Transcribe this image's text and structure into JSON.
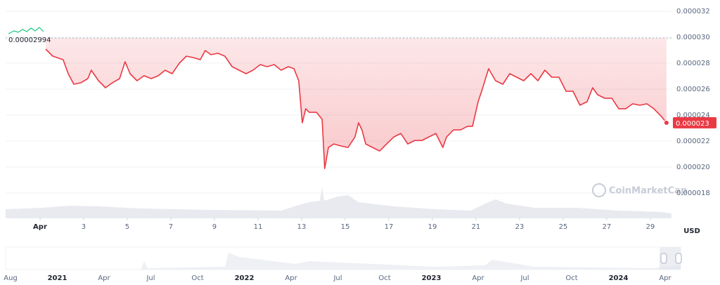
{
  "chart_data": {
    "type": "line",
    "currency": "USD",
    "watermark": "CoinMarketCap",
    "reference_value": 2.994e-05,
    "price_tag": "0.000023",
    "x": [
      1.26,
      1.58,
      2.06,
      2.29,
      2.55,
      2.87,
      3.19,
      3.35,
      3.68,
      4.0,
      4.32,
      4.65,
      4.9,
      5.13,
      5.45,
      5.77,
      6.1,
      6.42,
      6.74,
      7.06,
      7.39,
      7.71,
      8.03,
      8.35,
      8.58,
      8.84,
      9.16,
      9.48,
      9.81,
      10.13,
      10.45,
      10.77,
      11.1,
      11.42,
      11.74,
      12.06,
      12.39,
      12.65,
      12.87,
      13.03,
      13.19,
      13.35,
      13.68,
      13.94,
      14.06,
      14.23,
      14.48,
      14.81,
      15.13,
      15.45,
      15.61,
      15.77,
      15.94,
      16.26,
      16.58,
      16.9,
      17.23,
      17.55,
      17.87,
      18.19,
      18.52,
      18.84,
      19.16,
      19.48,
      19.65,
      19.97,
      20.29,
      20.61,
      20.84,
      21.1,
      21.26,
      21.58,
      21.9,
      22.23,
      22.55,
      22.87,
      23.19,
      23.52,
      23.84,
      24.16,
      24.48,
      24.81,
      25.13,
      25.45,
      25.77,
      26.1,
      26.35,
      26.58,
      26.9,
      27.23,
      27.55,
      27.87,
      28.19,
      28.52,
      28.84,
      29.16,
      29.48,
      29.74
    ],
    "series": [
      {
        "color": "#ea3943",
        "values": [
          2.908e-05,
          2.854e-05,
          2.827e-05,
          2.719e-05,
          2.638e-05,
          2.649e-05,
          2.681e-05,
          2.746e-05,
          2.665e-05,
          2.611e-05,
          2.649e-05,
          2.681e-05,
          2.811e-05,
          2.719e-05,
          2.665e-05,
          2.703e-05,
          2.681e-05,
          2.703e-05,
          2.746e-05,
          2.719e-05,
          2.8e-05,
          2.854e-05,
          2.843e-05,
          2.827e-05,
          2.897e-05,
          2.865e-05,
          2.876e-05,
          2.854e-05,
          2.773e-05,
          2.746e-05,
          2.719e-05,
          2.746e-05,
          2.789e-05,
          2.773e-05,
          2.789e-05,
          2.746e-05,
          2.773e-05,
          2.757e-05,
          2.665e-05,
          2.341e-05,
          2.449e-05,
          2.422e-05,
          2.422e-05,
          2.368e-05,
          1.989e-05,
          2.151e-05,
          2.178e-05,
          2.162e-05,
          2.151e-05,
          2.232e-05,
          2.341e-05,
          2.286e-05,
          2.178e-05,
          2.151e-05,
          2.124e-05,
          2.178e-05,
          2.232e-05,
          2.259e-05,
          2.178e-05,
          2.205e-05,
          2.205e-05,
          2.232e-05,
          2.259e-05,
          2.151e-05,
          2.232e-05,
          2.286e-05,
          2.286e-05,
          2.314e-05,
          2.314e-05,
          2.503e-05,
          2.584e-05,
          2.757e-05,
          2.665e-05,
          2.638e-05,
          2.719e-05,
          2.692e-05,
          2.665e-05,
          2.719e-05,
          2.665e-05,
          2.746e-05,
          2.692e-05,
          2.692e-05,
          2.584e-05,
          2.584e-05,
          2.476e-05,
          2.503e-05,
          2.611e-05,
          2.557e-05,
          2.53e-05,
          2.53e-05,
          2.449e-05,
          2.449e-05,
          2.487e-05,
          2.476e-05,
          2.487e-05,
          2.449e-05,
          2.395e-05,
          2.341e-05
        ]
      }
    ],
    "xlim": [
      -0.58,
      29.97
    ],
    "xticks": [
      {
        "value": 1,
        "label": "Apr"
      },
      3,
      5,
      7,
      9,
      11,
      13,
      15,
      17,
      19,
      21,
      23,
      25,
      27,
      29
    ],
    "ylim": [
      1.611e-05,
      3.243e-05
    ],
    "yticks": [
      1.8e-05,
      {
        "value": 2e-05,
        "label": "0.000020"
      },
      2.2e-05,
      2.4e-05,
      2.6e-05,
      2.8e-05,
      {
        "value": 3e-05,
        "label": "0.000030"
      },
      3.2e-05
    ],
    "grid": true,
    "navigator_labels": [
      "Aug",
      "2021",
      "Apr",
      "Jul",
      "Oct",
      "2022",
      "Apr",
      "Jul",
      "Oct",
      "2023",
      "Apr",
      "Jul",
      "Oct",
      "2024",
      "Apr"
    ]
  }
}
